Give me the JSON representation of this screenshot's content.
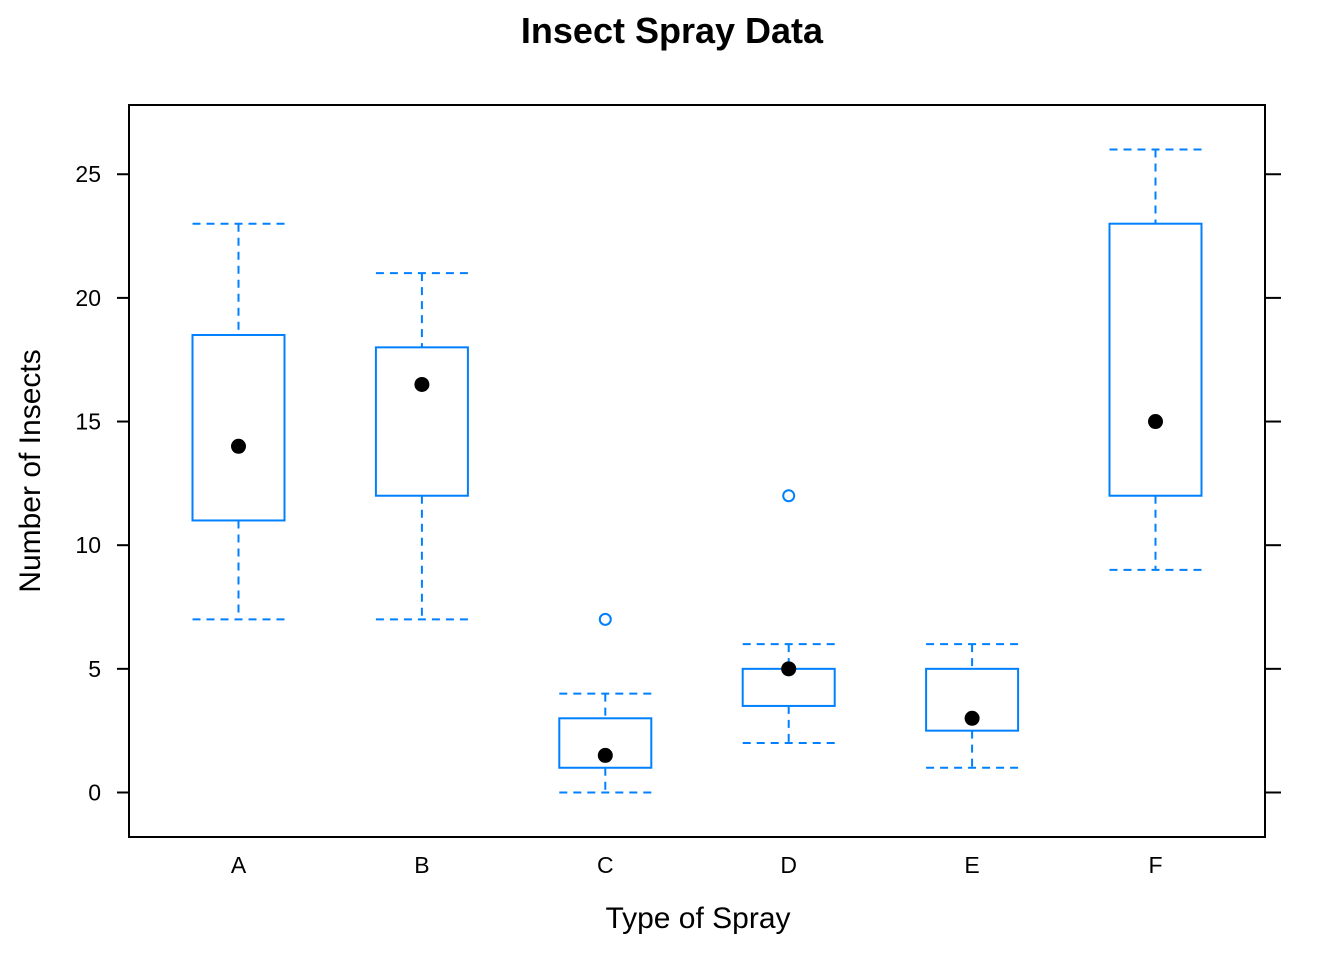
{
  "chart_data": {
    "type": "box",
    "title": "Insect Spray Data",
    "xlabel": "Type of Spray",
    "ylabel": "Number of Insects",
    "ylim": [
      -1.8,
      27.8
    ],
    "yticks": [
      0,
      5,
      10,
      15,
      20,
      25
    ],
    "categories": [
      "A",
      "B",
      "C",
      "D",
      "E",
      "F"
    ],
    "boxes": [
      {
        "category": "A",
        "min": 7,
        "q1": 11,
        "median": 14,
        "q3": 18.5,
        "max": 23,
        "outliers": []
      },
      {
        "category": "B",
        "min": 7,
        "q1": 12,
        "median": 16.5,
        "q3": 18,
        "max": 21,
        "outliers": []
      },
      {
        "category": "C",
        "min": 0,
        "q1": 1,
        "median": 1.5,
        "q3": 3,
        "max": 4,
        "outliers": [
          7
        ]
      },
      {
        "category": "D",
        "min": 2,
        "q1": 3.5,
        "median": 5,
        "q3": 5,
        "max": 6,
        "outliers": [
          12
        ]
      },
      {
        "category": "E",
        "min": 1,
        "q1": 2.5,
        "median": 3,
        "q3": 5,
        "max": 6,
        "outliers": []
      },
      {
        "category": "F",
        "min": 9,
        "q1": 12,
        "median": 15,
        "q3": 23,
        "max": 26,
        "outliers": []
      }
    ],
    "grid": false,
    "colors": {
      "box": "#0080ff",
      "median_dot": "#000000",
      "frame": "#000000"
    }
  }
}
